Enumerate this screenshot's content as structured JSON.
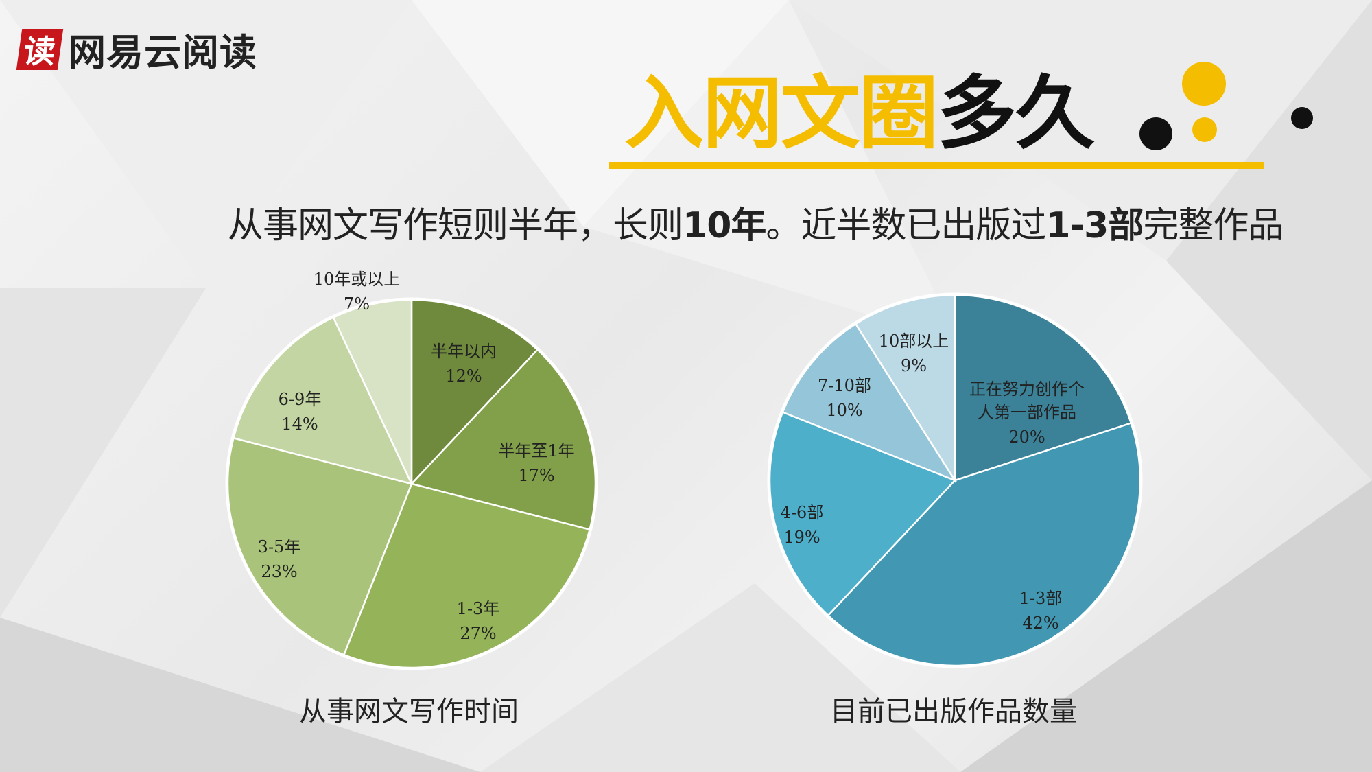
{
  "logo": {
    "mark": "读",
    "text": "网易云阅读"
  },
  "title": {
    "highlight": "入网文圈",
    "rest": "多久"
  },
  "subtitle": {
    "p1": "从事网文写作短则半年，长则",
    "b1": "10年",
    "p2": "。近半数已出版过",
    "b2": "1-3部",
    "p3": "完整作品"
  },
  "colors": {
    "accent": "#f5bd00",
    "dark": "#111111"
  },
  "chart_data": [
    {
      "type": "pie",
      "title": "从事网文写作时间",
      "slices": [
        {
          "label": "半年以内",
          "value": 12,
          "pct": "12%",
          "color": "#6f8a3c"
        },
        {
          "label": "半年至1年",
          "value": 17,
          "pct": "17%",
          "color": "#82a04a"
        },
        {
          "label": "1-3年",
          "value": 27,
          "pct": "27%",
          "color": "#95b45a"
        },
        {
          "label": "3-5年",
          "value": 23,
          "pct": "23%",
          "color": "#a9c47a"
        },
        {
          "label": "6-9年",
          "value": 14,
          "pct": "14%",
          "color": "#c3d5a2"
        },
        {
          "label": "10年或以上",
          "value": 7,
          "pct": "7%",
          "color": "#d8e3c5"
        }
      ]
    },
    {
      "type": "pie",
      "title": "目前已出版作品数量",
      "slices": [
        {
          "label": "正在努力创作个人第一部作品",
          "value": 20,
          "pct": "20%",
          "color": "#3b8299"
        },
        {
          "label": "1-3部",
          "value": 42,
          "pct": "42%",
          "color": "#4298b2"
        },
        {
          "label": "4-6部",
          "value": 19,
          "pct": "19%",
          "color": "#4eafcb"
        },
        {
          "label": "7-10部",
          "value": 10,
          "pct": "10%",
          "color": "#95c5d8"
        },
        {
          "label": "10部以上",
          "value": 9,
          "pct": "9%",
          "color": "#bcd9e6"
        }
      ]
    }
  ]
}
